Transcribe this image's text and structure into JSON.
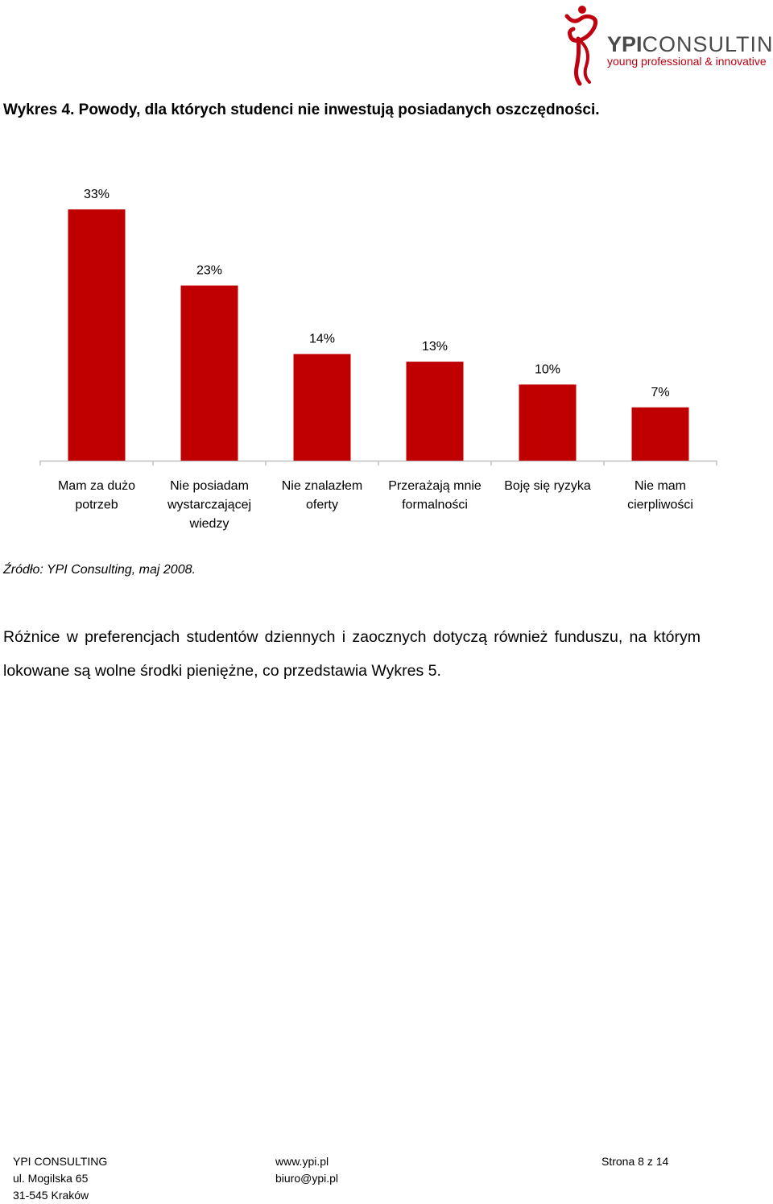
{
  "logo": {
    "brand_bold": "YPI",
    "brand_rest": "CONSULTING",
    "tagline": "young professional & innovative"
  },
  "figure_title": "Wykres 4. Powody, dla których studenci nie inwestują posiadanych oszczędności.",
  "chart_data": {
    "type": "bar",
    "title": "",
    "xlabel": "",
    "ylabel": "",
    "ylim": [
      0,
      33
    ],
    "grid": false,
    "legend": "none",
    "bar_color": "#c00000",
    "categories": [
      [
        "Mam za dużo",
        "potrzeb"
      ],
      [
        "Nie posiadam",
        "wystarczającej",
        "wiedzy"
      ],
      [
        "Nie znalazłem",
        "oferty"
      ],
      [
        "Przerażają mnie",
        "formalności"
      ],
      [
        "Boję się ryzyka"
      ],
      [
        "Nie mam",
        "cierpliwości"
      ]
    ],
    "values": [
      33,
      23,
      14,
      13,
      10,
      7
    ],
    "value_labels": [
      "33%",
      "23%",
      "14%",
      "13%",
      "10%",
      "7%"
    ]
  },
  "source": "Źródło: YPI Consulting, maj 2008.",
  "paragraph": "Różnice w preferencjach studentów dziennych i zaocznych dotyczą również funduszu, na którym lokowane są wolne środki pieniężne, co przedstawia Wykres 5.",
  "footer": {
    "col1": [
      "YPI CONSULTING",
      "ul. Mogilska 65",
      "31-545 Kraków"
    ],
    "col2": [
      "www.ypi.pl",
      "biuro@ypi.pl"
    ],
    "col3": [
      "Strona 8 z 14"
    ]
  }
}
